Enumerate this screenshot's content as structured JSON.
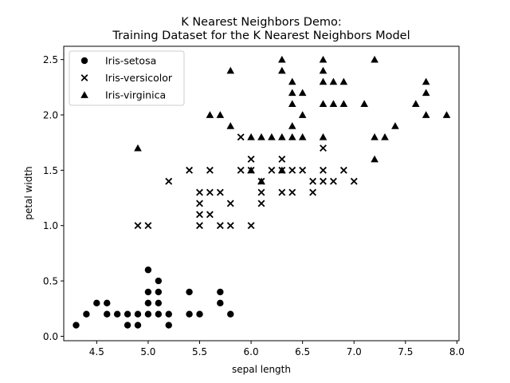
{
  "chart_data": {
    "type": "scatter",
    "title_lines": [
      "K Nearest Neighbors Demo:",
      "Training Dataset for the K Nearest Neighbors Model"
    ],
    "xlabel": "sepal length",
    "ylabel": "petal width",
    "xlim": [
      4.18,
      8.02
    ],
    "ylim": [
      -0.04,
      2.62
    ],
    "xticks": [
      4.5,
      5.0,
      5.5,
      6.0,
      6.5,
      7.0,
      7.5,
      8.0
    ],
    "xtick_labels": [
      "4.5",
      "5.0",
      "5.5",
      "6.0",
      "6.5",
      "7.0",
      "7.5",
      "8.0"
    ],
    "yticks": [
      0.0,
      0.5,
      1.0,
      1.5,
      2.0,
      2.5
    ],
    "ytick_labels": [
      "0.0",
      "0.5",
      "1.0",
      "1.5",
      "2.0",
      "2.5"
    ],
    "grid": false,
    "legend_position": "top-left",
    "marker_color": "#000000",
    "series": [
      {
        "name": "Iris-setosa",
        "marker": "circle",
        "points": [
          [
            4.3,
            0.1
          ],
          [
            4.4,
            0.2
          ],
          [
            4.5,
            0.3
          ],
          [
            4.6,
            0.3
          ],
          [
            4.6,
            0.2
          ],
          [
            4.7,
            0.2
          ],
          [
            4.8,
            0.2
          ],
          [
            4.8,
            0.1
          ],
          [
            4.9,
            0.2
          ],
          [
            4.9,
            0.1
          ],
          [
            5.0,
            0.6
          ],
          [
            5.0,
            0.4
          ],
          [
            5.0,
            0.3
          ],
          [
            5.0,
            0.2
          ],
          [
            5.1,
            0.5
          ],
          [
            5.1,
            0.4
          ],
          [
            5.1,
            0.3
          ],
          [
            5.1,
            0.2
          ],
          [
            5.2,
            0.2
          ],
          [
            5.2,
            0.1
          ],
          [
            5.4,
            0.4
          ],
          [
            5.4,
            0.2
          ],
          [
            5.5,
            0.2
          ],
          [
            5.7,
            0.4
          ],
          [
            5.7,
            0.3
          ],
          [
            5.8,
            0.2
          ]
        ]
      },
      {
        "name": "Iris-versicolor",
        "marker": "x",
        "points": [
          [
            4.9,
            1.0
          ],
          [
            5.0,
            1.0
          ],
          [
            5.2,
            1.4
          ],
          [
            5.4,
            1.5
          ],
          [
            5.5,
            1.3
          ],
          [
            5.5,
            1.2
          ],
          [
            5.5,
            1.1
          ],
          [
            5.5,
            1.0
          ],
          [
            5.6,
            1.5
          ],
          [
            5.6,
            1.3
          ],
          [
            5.6,
            1.1
          ],
          [
            5.7,
            1.3
          ],
          [
            5.7,
            1.0
          ],
          [
            5.8,
            1.2
          ],
          [
            5.8,
            1.0
          ],
          [
            5.9,
            1.8
          ],
          [
            5.9,
            1.5
          ],
          [
            6.0,
            1.6
          ],
          [
            6.0,
            1.5
          ],
          [
            6.0,
            1.0
          ],
          [
            6.1,
            1.4
          ],
          [
            6.1,
            1.3
          ],
          [
            6.1,
            1.2
          ],
          [
            6.2,
            1.5
          ],
          [
            6.3,
            1.6
          ],
          [
            6.3,
            1.5
          ],
          [
            6.3,
            1.3
          ],
          [
            6.4,
            1.5
          ],
          [
            6.4,
            1.3
          ],
          [
            6.5,
            1.5
          ],
          [
            6.6,
            1.4
          ],
          [
            6.6,
            1.3
          ],
          [
            6.7,
            1.7
          ],
          [
            6.7,
            1.5
          ],
          [
            6.7,
            1.4
          ],
          [
            6.8,
            1.4
          ],
          [
            6.9,
            1.5
          ],
          [
            7.0,
            1.4
          ]
        ]
      },
      {
        "name": "Iris-virginica",
        "marker": "triangle",
        "points": [
          [
            4.9,
            1.7
          ],
          [
            5.6,
            2.0
          ],
          [
            5.7,
            2.0
          ],
          [
            5.8,
            2.4
          ],
          [
            5.8,
            1.9
          ],
          [
            6.0,
            1.8
          ],
          [
            6.0,
            1.5
          ],
          [
            6.1,
            1.8
          ],
          [
            6.1,
            1.4
          ],
          [
            6.2,
            1.8
          ],
          [
            6.3,
            2.5
          ],
          [
            6.3,
            2.4
          ],
          [
            6.3,
            1.8
          ],
          [
            6.3,
            1.5
          ],
          [
            6.4,
            2.3
          ],
          [
            6.4,
            2.2
          ],
          [
            6.4,
            2.1
          ],
          [
            6.4,
            1.9
          ],
          [
            6.4,
            1.8
          ],
          [
            6.5,
            2.2
          ],
          [
            6.5,
            2.0
          ],
          [
            6.5,
            1.8
          ],
          [
            6.7,
            2.5
          ],
          [
            6.7,
            2.4
          ],
          [
            6.7,
            2.3
          ],
          [
            6.7,
            2.1
          ],
          [
            6.7,
            1.8
          ],
          [
            6.8,
            2.3
          ],
          [
            6.8,
            2.1
          ],
          [
            6.9,
            2.3
          ],
          [
            6.9,
            2.1
          ],
          [
            7.1,
            2.1
          ],
          [
            7.2,
            2.5
          ],
          [
            7.2,
            1.8
          ],
          [
            7.2,
            1.6
          ],
          [
            7.3,
            1.8
          ],
          [
            7.4,
            1.9
          ],
          [
            7.6,
            2.1
          ],
          [
            7.7,
            2.3
          ],
          [
            7.7,
            2.2
          ],
          [
            7.7,
            2.0
          ],
          [
            7.9,
            2.0
          ]
        ]
      }
    ]
  }
}
